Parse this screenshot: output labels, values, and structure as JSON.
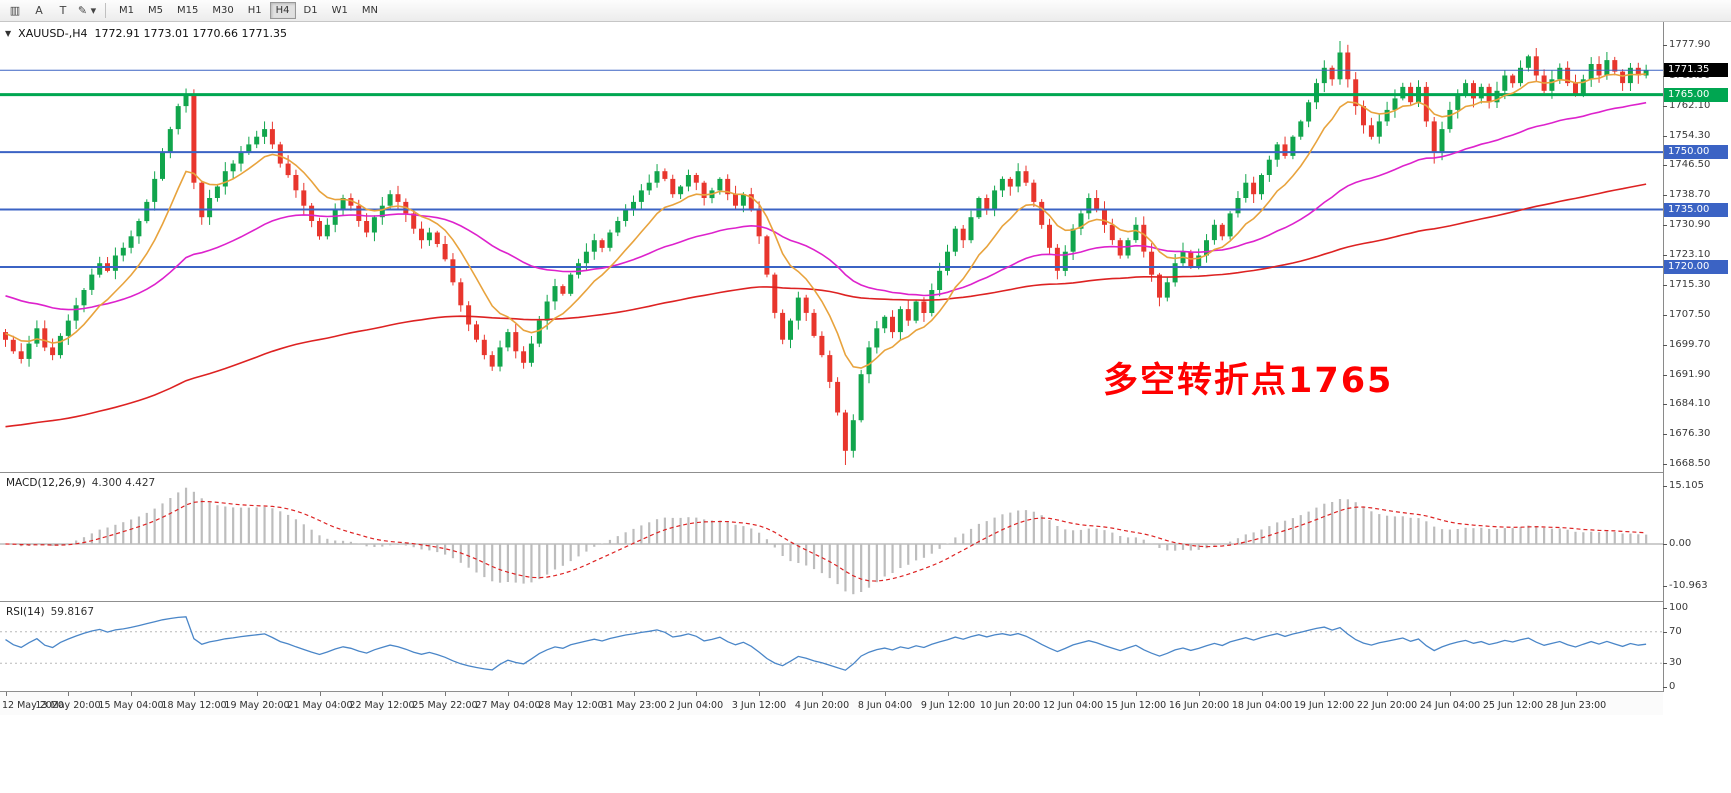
{
  "toolbar": {
    "icons": [
      {
        "name": "chart-windows-icon",
        "glyph": "▥"
      },
      {
        "name": "cursor-tool-icon",
        "glyph": "A"
      },
      {
        "name": "text-tool-icon",
        "glyph": "T"
      },
      {
        "name": "draw-tool-icon",
        "glyph": "✎ ▾"
      }
    ],
    "timeframes": [
      "M1",
      "M5",
      "M15",
      "M30",
      "H1",
      "H4",
      "D1",
      "W1",
      "MN"
    ],
    "active_timeframe": "H4"
  },
  "chart": {
    "dropdown_glyph": "▼",
    "symbol_title": "XAUUSD-,H4",
    "ohlc_readout": "1772.91 1773.01 1770.66 1771.35",
    "annotation": {
      "text": "多空转折点1765",
      "color": "#ff0000"
    }
  },
  "indicators": {
    "macd": {
      "label": "MACD(12,26,9)",
      "values": "4.300 4.427",
      "axis_labels": [
        "15.105",
        "0.00",
        "-10.963"
      ]
    },
    "rsi": {
      "label": "RSI(14)",
      "value": "59.8167",
      "axis_labels": [
        "100",
        "70",
        "30",
        "0"
      ]
    }
  },
  "chart_data": {
    "type": "candlestick",
    "symbol": "XAUUSD",
    "timeframe": "H4",
    "current_bar": {
      "open": 1772.91,
      "high": 1773.01,
      "low": 1770.66,
      "close": 1771.35
    },
    "y_range": [
      1667.0,
      1780.3
    ],
    "y_axis_labels": [
      "1777.90",
      "1769.90",
      "1762.10",
      "1754.30",
      "1746.50",
      "1738.70",
      "1730.90",
      "1723.10",
      "1715.30",
      "1707.50",
      "1699.70",
      "1691.90",
      "1684.10",
      "1676.30",
      "1668.50"
    ],
    "x_labels": [
      "12 May 2020",
      "13 May 20:00",
      "15 May 04:00",
      "18 May 12:00",
      "19 May 20:00",
      "21 May 04:00",
      "22 May 12:00",
      "25 May 22:00",
      "27 May 04:00",
      "28 May 12:00",
      "31 May 23:00",
      "2 Jun 04:00",
      "3 Jun 12:00",
      "4 Jun 20:00",
      "8 Jun 04:00",
      "9 Jun 12:00",
      "10 Jun 20:00",
      "12 Jun 04:00",
      "15 Jun 12:00",
      "16 Jun 20:00",
      "18 Jun 04:00",
      "19 Jun 12:00",
      "22 Jun 20:00",
      "24 Jun 04:00",
      "25 Jun 12:00",
      "28 Jun 23:00"
    ],
    "bars_per_label": 8,
    "closes": [
      1701,
      1698,
      1696,
      1700,
      1704,
      1699,
      1697,
      1702,
      1706,
      1710,
      1714,
      1718,
      1721,
      1719,
      1723,
      1725,
      1728,
      1732,
      1737,
      1743,
      1750,
      1756,
      1762,
      1765,
      1742,
      1733,
      1738,
      1741,
      1745,
      1747,
      1750,
      1752,
      1754,
      1756,
      1752,
      1747,
      1744,
      1740,
      1736,
      1732,
      1728,
      1731,
      1735,
      1738,
      1736,
      1732,
      1729,
      1733,
      1736,
      1739,
      1737,
      1734,
      1730,
      1727,
      1729,
      1726,
      1722,
      1716,
      1710,
      1705,
      1701,
      1697,
      1694,
      1699,
      1703,
      1698,
      1695,
      1700,
      1706,
      1711,
      1715,
      1713,
      1718,
      1721,
      1724,
      1727,
      1725,
      1729,
      1732,
      1735,
      1737,
      1740,
      1742,
      1745,
      1743,
      1739,
      1741,
      1744,
      1742,
      1738,
      1740,
      1743,
      1739,
      1736,
      1739,
      1735,
      1728,
      1718,
      1708,
      1701,
      1706,
      1712,
      1708,
      1702,
      1697,
      1690,
      1682,
      1672,
      1680,
      1692,
      1699,
      1704,
      1707,
      1703,
      1709,
      1706,
      1711,
      1708,
      1714,
      1719,
      1724,
      1730,
      1727,
      1733,
      1738,
      1735,
      1740,
      1743,
      1741,
      1745,
      1742,
      1737,
      1731,
      1725,
      1719,
      1724,
      1730,
      1734,
      1738,
      1735,
      1731,
      1727,
      1723,
      1727,
      1731,
      1724,
      1718,
      1712,
      1716,
      1721,
      1724,
      1720,
      1723,
      1727,
      1731,
      1728,
      1734,
      1738,
      1742,
      1739,
      1744,
      1748,
      1752,
      1749,
      1754,
      1758,
      1763,
      1768,
      1772,
      1769,
      1776,
      1769,
      1762,
      1757,
      1754,
      1758,
      1761,
      1764,
      1767,
      1763,
      1767,
      1758,
      1750,
      1756,
      1761,
      1765,
      1768,
      1764,
      1767,
      1763,
      1766,
      1770,
      1768,
      1772,
      1775,
      1770,
      1766,
      1769,
      1772,
      1768,
      1765,
      1769,
      1773,
      1770,
      1774,
      1771,
      1768,
      1772,
      1770,
      1771.35
    ],
    "session_high": {
      "index": 170,
      "price": 1779.0
    },
    "session_low": {
      "index": 107,
      "price": 1668.3
    },
    "extra_wicks": [
      {
        "index": 182,
        "low": 1747.0
      },
      {
        "index": 23,
        "high": 1766.6
      }
    ],
    "levels": [
      {
        "price": 1771.35,
        "color": "#3b63c4",
        "badge": "1771.35",
        "badge_bg": "#000000",
        "width": 1
      },
      {
        "price": 1765.0,
        "color": "#00a651",
        "badge": "1765.00",
        "badge_bg": "#00a651",
        "width": 3
      },
      {
        "price": 1750.0,
        "color": "#3b63c4",
        "badge": "1750.00",
        "badge_bg": "#3b63c4",
        "width": 2
      },
      {
        "price": 1735.0,
        "color": "#3b63c4",
        "badge": "1735.00",
        "badge_bg": "#3b63c4",
        "width": 2
      },
      {
        "price": 1720.0,
        "color": "#3b63c4",
        "badge": "1720.00",
        "badge_bg": "#3b63c4",
        "width": 2
      }
    ],
    "moving_averages": [
      {
        "name": "slow",
        "color": "#dd2222",
        "period": 150,
        "seed": 1678
      },
      {
        "name": "medium",
        "color": "#dd22cc",
        "period": 45,
        "seed": 1713
      },
      {
        "name": "fast",
        "color": "#e8a33d",
        "period": 10,
        "seed": 1703
      }
    ],
    "up_color": "#11a54c",
    "down_color": "#e8362d",
    "macd": {
      "fast": 12,
      "slow": 26,
      "signal": 9,
      "scale_max": 16.8,
      "scale_min": -13.2,
      "hist_color": "#bdbdbd",
      "signal_color": "#dd2222"
    },
    "rsi": {
      "period": 14,
      "levels": [
        70,
        30
      ],
      "line_color": "#4a86c8",
      "last": 59.8167
    }
  }
}
